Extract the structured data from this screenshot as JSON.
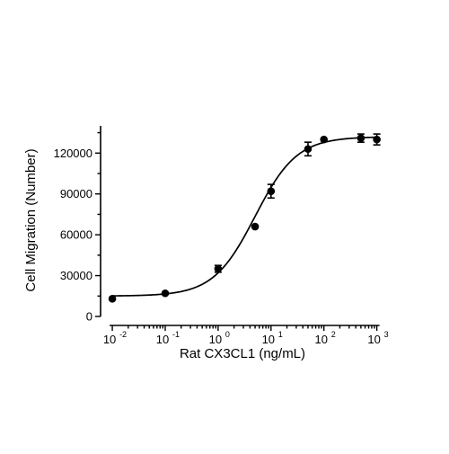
{
  "chart_data": {
    "type": "scatter",
    "xlabel": "Rat CX3CL1 (ng/mL)",
    "ylabel": "Cell Migration (Number)",
    "xscale": "log",
    "xlim": [
      0.006,
      1500
    ],
    "ylim": [
      0,
      140000
    ],
    "x_ticks": [
      {
        "value": 0.01,
        "base": "10",
        "exp": "-2"
      },
      {
        "value": 0.1,
        "base": "10",
        "exp": "-1"
      },
      {
        "value": 1,
        "base": "10",
        "exp": "0"
      },
      {
        "value": 10,
        "base": "10",
        "exp": "1"
      },
      {
        "value": 100,
        "base": "10",
        "exp": "2"
      },
      {
        "value": 1000,
        "base": "10",
        "exp": "3"
      }
    ],
    "y_ticks": [
      {
        "value": 0,
        "label": "0"
      },
      {
        "value": 30000,
        "label": "30000"
      },
      {
        "value": 60000,
        "label": "60000"
      },
      {
        "value": 90000,
        "label": "90000"
      },
      {
        "value": 120000,
        "label": "120000"
      }
    ],
    "points": [
      {
        "x": 0.01,
        "y": 13000,
        "err": 0
      },
      {
        "x": 0.1,
        "y": 17000,
        "err": 0
      },
      {
        "x": 1,
        "y": 35000,
        "err": 2500
      },
      {
        "x": 5,
        "y": 66000,
        "err": 0
      },
      {
        "x": 10,
        "y": 92000,
        "err": 5000
      },
      {
        "x": 50,
        "y": 123000,
        "err": 5000
      },
      {
        "x": 100,
        "y": 130000,
        "err": 0
      },
      {
        "x": 500,
        "y": 131000,
        "err": 3000
      },
      {
        "x": 1000,
        "y": 130000,
        "err": 4000
      }
    ],
    "fit": {
      "model": "four-parameter logistic",
      "bottom": 15000,
      "top": 132000,
      "ec50": 5,
      "hill": 1.1
    },
    "grid": false,
    "legend": "none"
  }
}
